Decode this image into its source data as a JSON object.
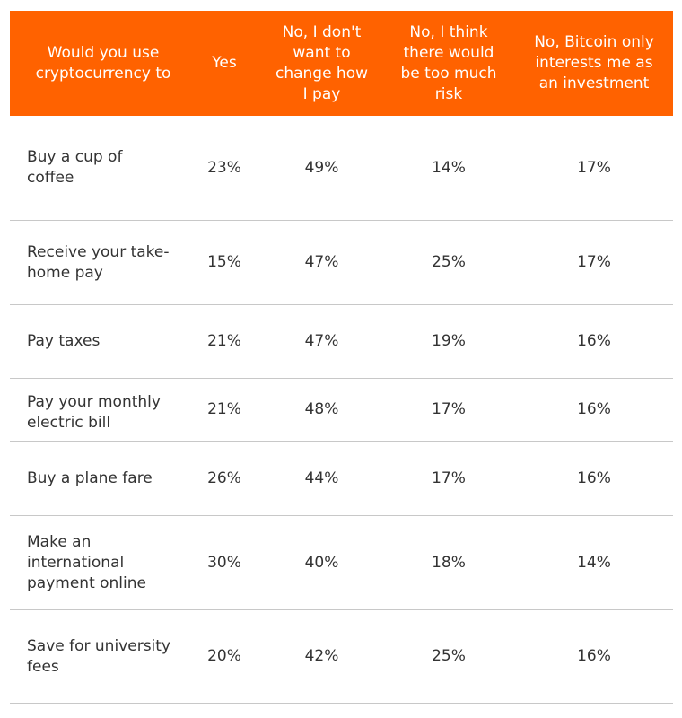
{
  "chart_data": {
    "type": "table",
    "columns": [
      "Would you use\ncryptocurrency to",
      "Yes",
      "No, I don't\nwant to\nchange how\nI pay",
      "No, I think\nthere would\nbe too much\nrisk",
      "No, Bitcoin only\ninterests me as\nan investment"
    ],
    "rows": [
      {
        "label": "Buy a cup of\ncoffee",
        "values": [
          "23%",
          "49%",
          "14%",
          "17%"
        ]
      },
      {
        "label": "Receive your take-\nhome pay",
        "values": [
          "15%",
          "47%",
          "25%",
          "17%"
        ]
      },
      {
        "label": "Pay taxes",
        "values": [
          "21%",
          "47%",
          "19%",
          "16%"
        ]
      },
      {
        "label": "Pay your monthly\nelectric bill",
        "values": [
          "21%",
          "48%",
          "17%",
          "16%"
        ]
      },
      {
        "label": "Buy a plane fare",
        "values": [
          "26%",
          "44%",
          "17%",
          "16%"
        ]
      },
      {
        "label": "Make an\ninternational\npayment online",
        "values": [
          "30%",
          "40%",
          "18%",
          "14%"
        ]
      },
      {
        "label": "Save for university\nfees",
        "values": [
          "20%",
          "42%",
          "25%",
          "16%"
        ]
      }
    ],
    "colors": {
      "header_background": "#ff6200",
      "header_text": "#ffffff",
      "body_text": "#333333",
      "row_divider": "#c8c8c8"
    }
  }
}
